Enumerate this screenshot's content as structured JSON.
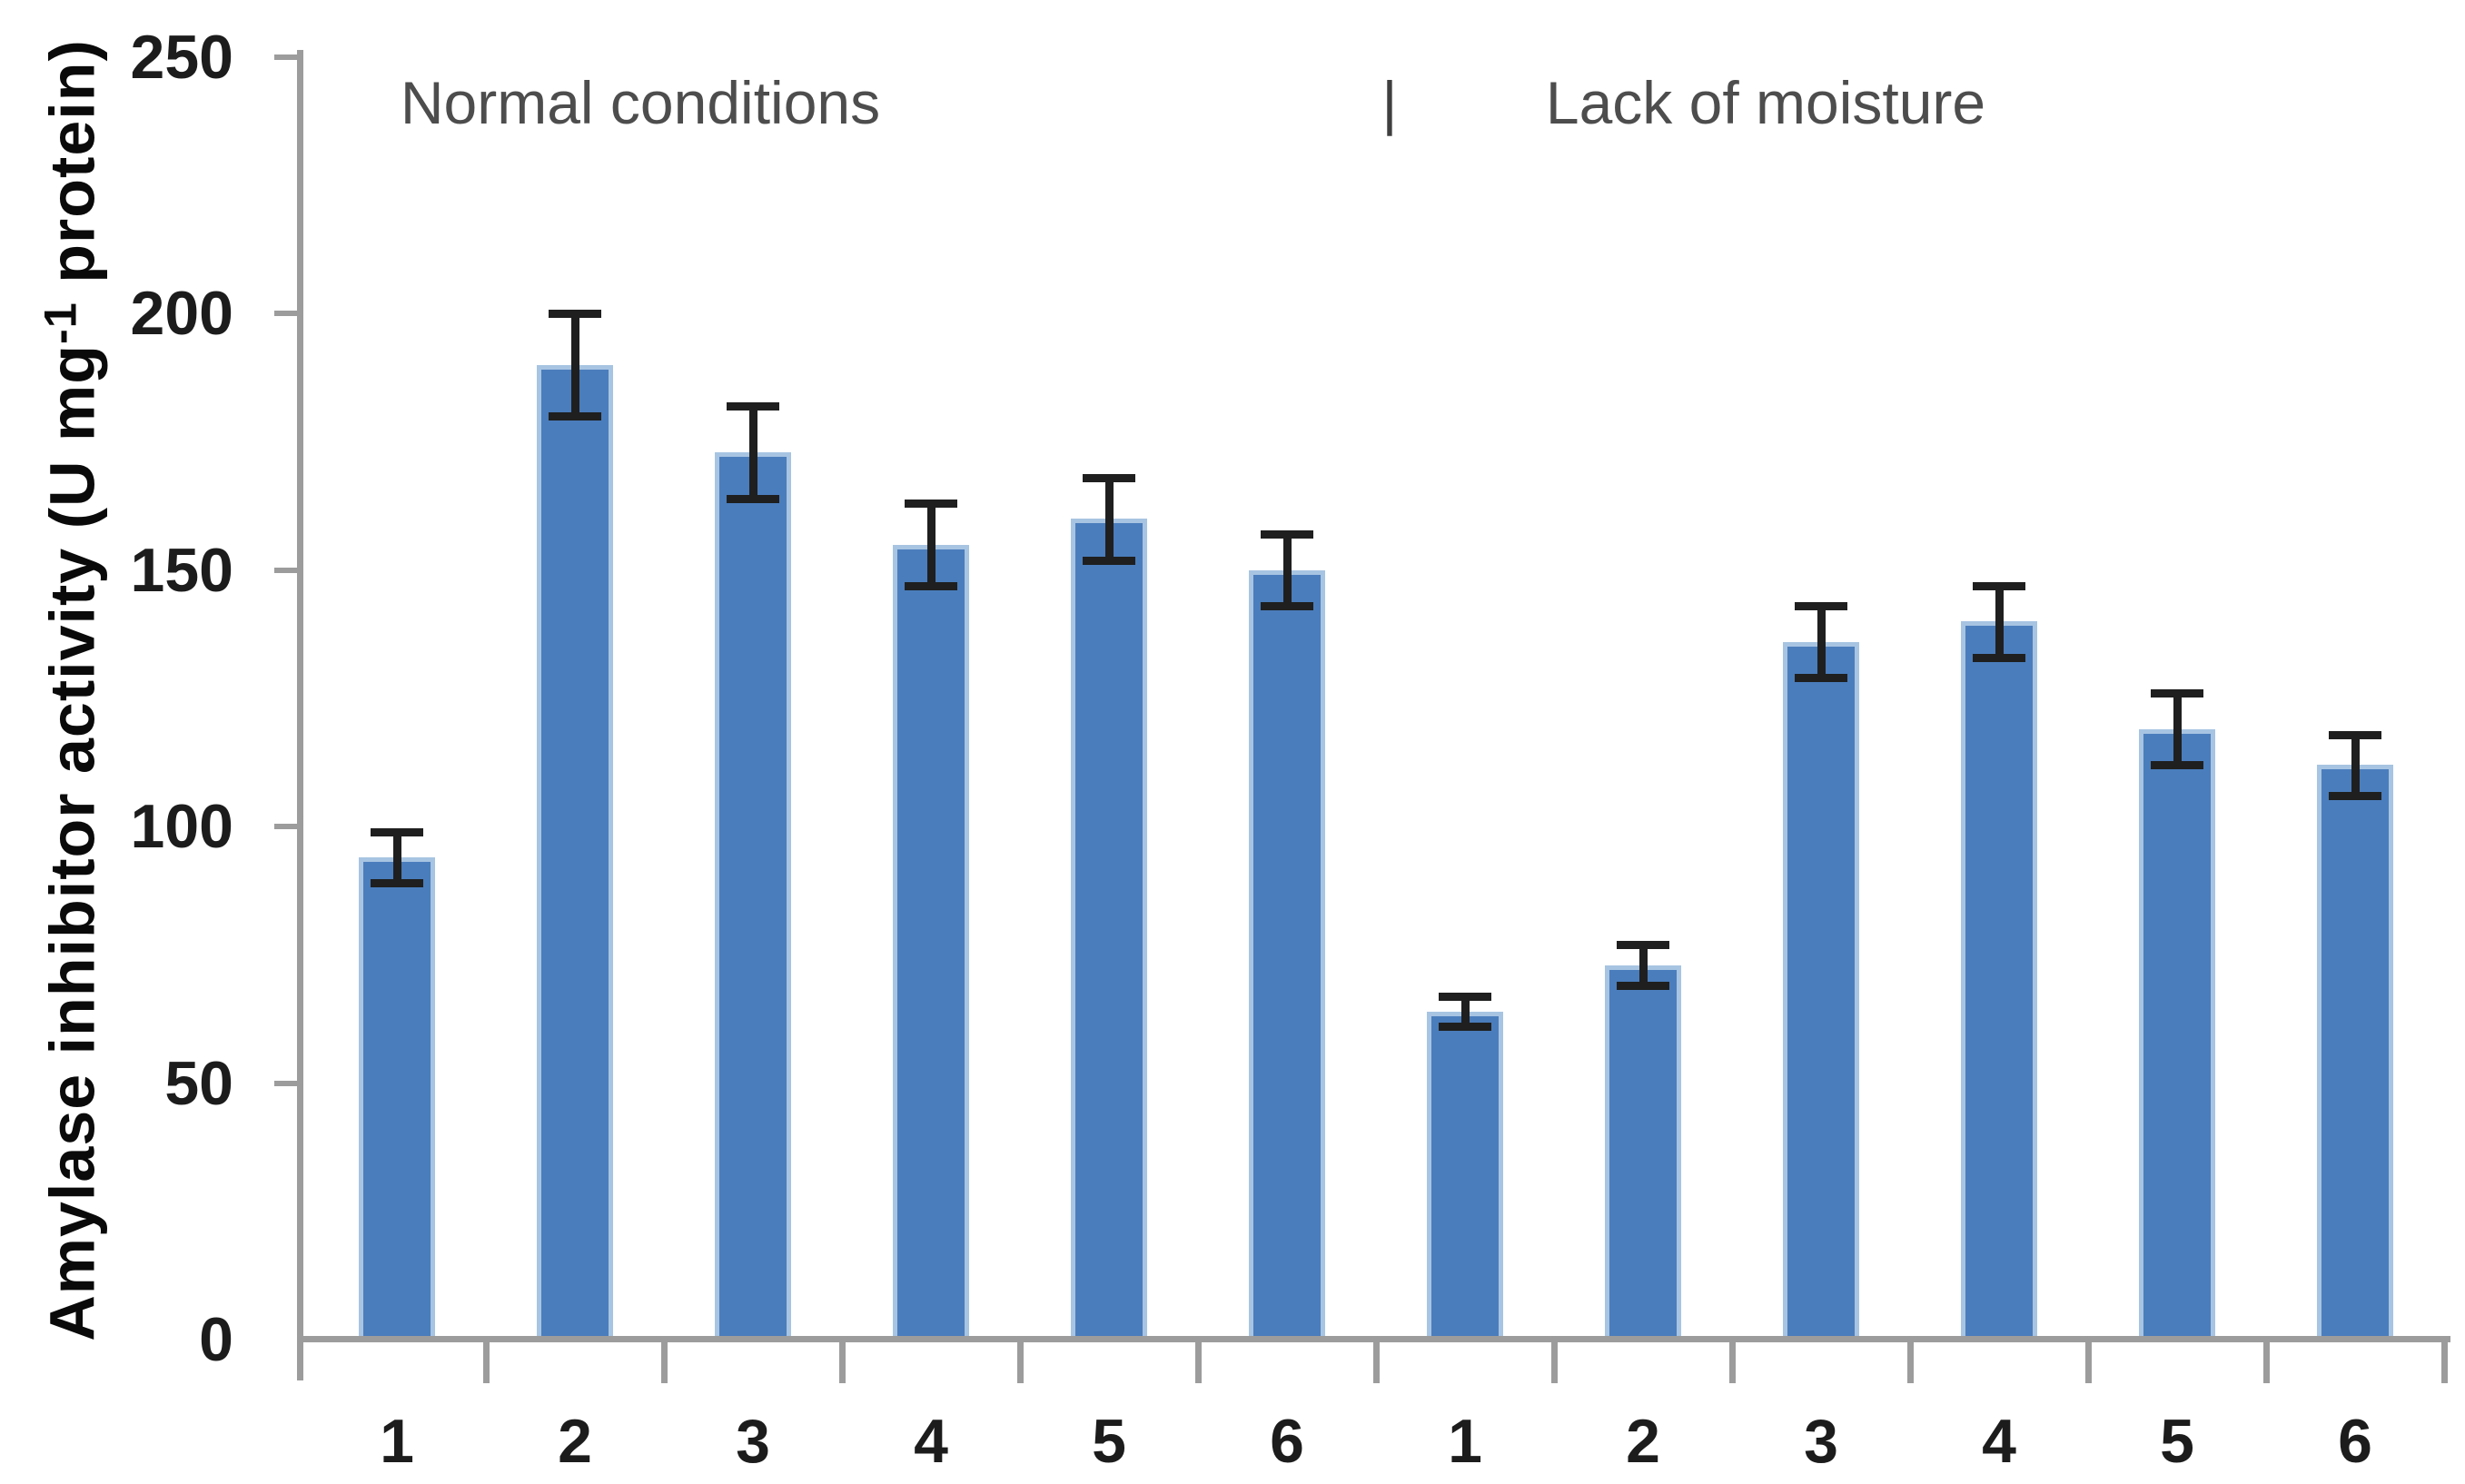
{
  "header": {
    "left_label": "Normal conditions",
    "separator": "|",
    "right_label": "Lack of moisture"
  },
  "y_axis": {
    "title_prefix": "Amylase inhibitor activity (U mg",
    "title_superscript": "-1",
    "title_suffix": " protein)"
  },
  "chart_data": {
    "type": "bar",
    "title": "",
    "xlabel": "",
    "ylabel": "Amylase inhibitor activity (U mg-1 protein)",
    "ylim": [
      0,
      250
    ],
    "yticks": [
      0,
      50,
      100,
      150,
      200,
      250
    ],
    "grid": false,
    "legend": false,
    "error_bars": true,
    "groups": [
      {
        "label": "Normal conditions",
        "categories": [
          "1",
          "2",
          "3",
          "4",
          "5",
          "6"
        ],
        "values": [
          94,
          190,
          173,
          155,
          160,
          150
        ],
        "errors": [
          5,
          10,
          9,
          8,
          8,
          7
        ]
      },
      {
        "label": "Lack of moisture",
        "categories": [
          "1",
          "2",
          "3",
          "4",
          "5",
          "6"
        ],
        "values": [
          64,
          73,
          136,
          140,
          119,
          112
        ],
        "errors": [
          3,
          4,
          7,
          7,
          7,
          6
        ]
      }
    ]
  },
  "styles": {
    "bar_fill": "#4a7dbc",
    "bar_border": "#a7c4e2",
    "error_color": "#1f1f1f",
    "axis_color": "#9c9c9c",
    "tick_text_color": "#1c1c1c",
    "header_text_color": "#4d4d4d"
  }
}
